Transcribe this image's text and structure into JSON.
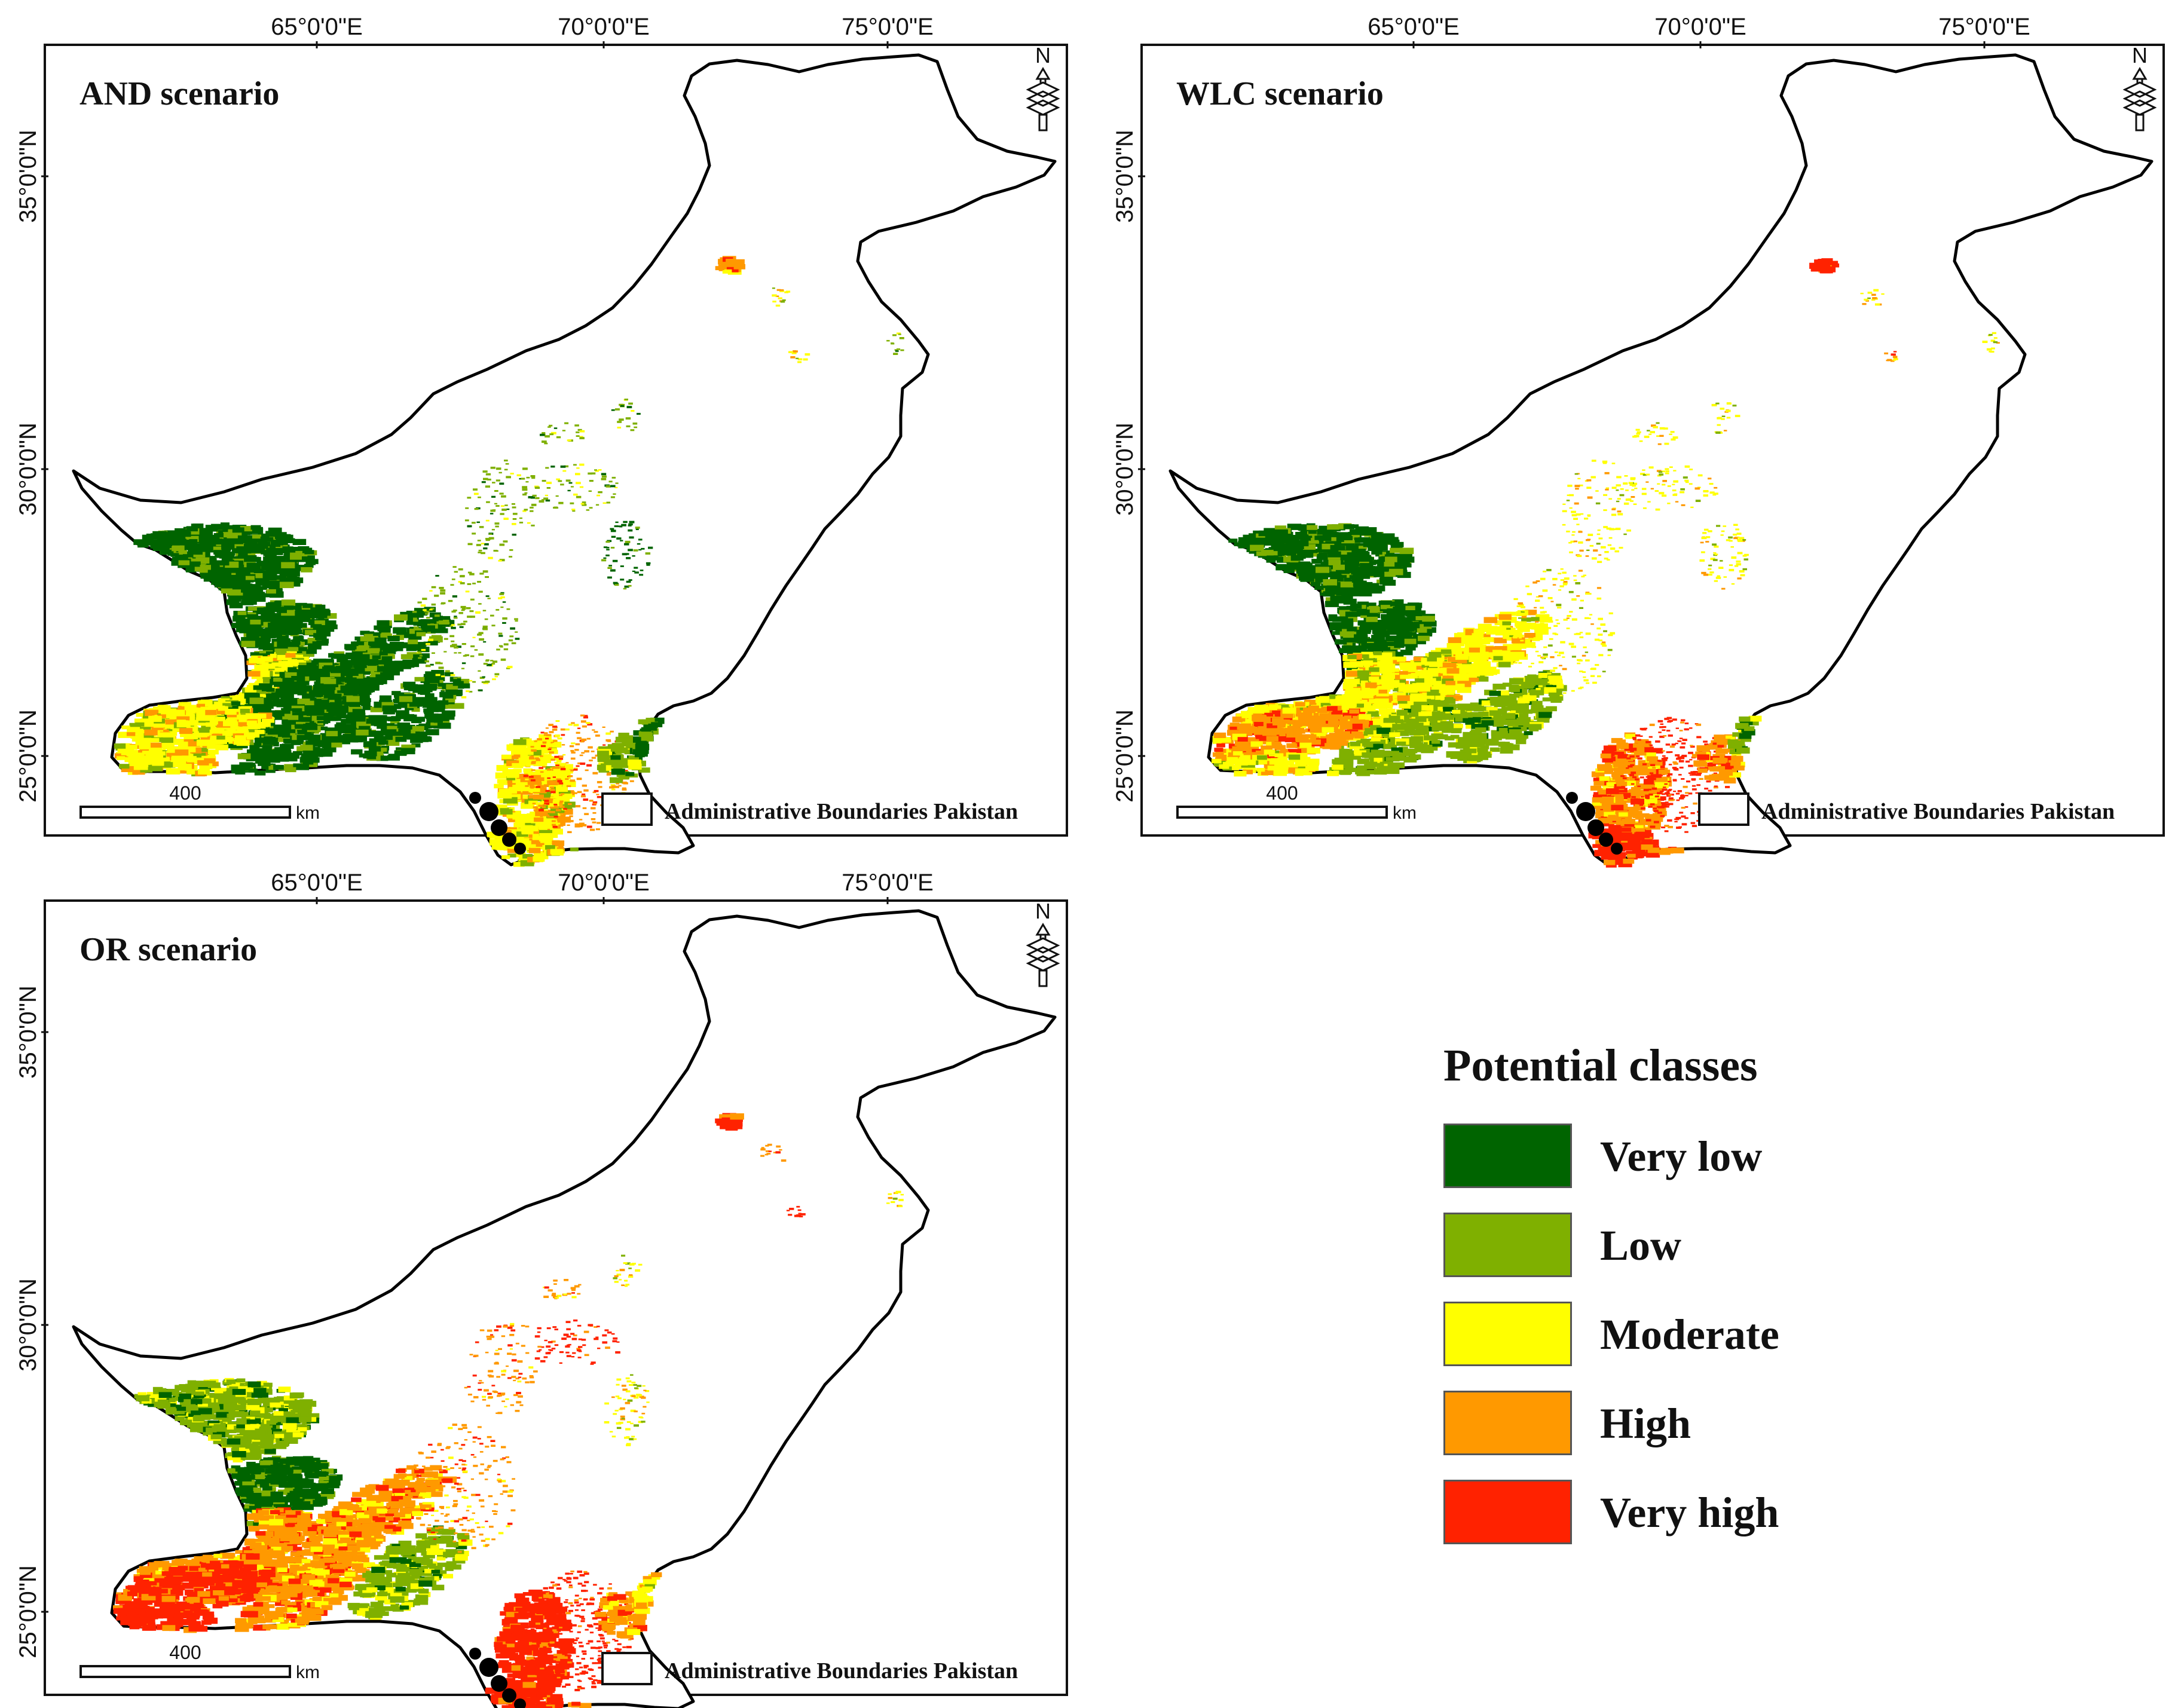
{
  "figure": {
    "panels": [
      {
        "id": "and",
        "title": "AND scenario",
        "lon_labels": [
          "65°0'0\"E",
          "70°0'0\"E",
          "75°0'0\"E"
        ],
        "lat_labels": [
          "35°0'0\"N",
          "30°0'0\"N",
          "25°0'0\"N"
        ],
        "scale_value": "400",
        "scale_unit": "km",
        "boundary_label": "Administrative Boundaries  Pakistan",
        "north_label": "N",
        "dominant_classes": [
          "Very low",
          "Low",
          "Moderate",
          "High",
          "Very high"
        ]
      },
      {
        "id": "wlc",
        "title": "WLC scenario",
        "lon_labels": [
          "65°0'0\"E",
          "70°0'0\"E",
          "75°0'0\"E"
        ],
        "lat_labels": [
          "35°0'0\"N",
          "30°0'0\"N",
          "25°0'0\"N"
        ],
        "scale_value": "400",
        "scale_unit": "km",
        "boundary_label": "Administrative Boundaries  Pakistan",
        "north_label": "N",
        "dominant_classes": [
          "Very low",
          "Low",
          "Moderate",
          "High",
          "Very high"
        ]
      },
      {
        "id": "or",
        "title": "OR scenario",
        "lon_labels": [
          "65°0'0\"E",
          "70°0'0\"E",
          "75°0'0\"E"
        ],
        "lat_labels": [
          "35°0'0\"N",
          "30°0'0\"N",
          "25°0'0\"N"
        ],
        "scale_value": "400",
        "scale_unit": "km",
        "boundary_label": "Administrative Boundaries  Pakistan",
        "north_label": "N",
        "dominant_classes": [
          "Very low",
          "Low",
          "Moderate",
          "High",
          "Very high"
        ]
      }
    ],
    "legend": {
      "title": "Potential classes",
      "items": [
        {
          "label": "Very low",
          "color": "#006400"
        },
        {
          "label": "Low",
          "color": "#7fb000"
        },
        {
          "label": "Moderate",
          "color": "#ffff00"
        },
        {
          "label": "High",
          "color": "#ff9900"
        },
        {
          "label": "Very high",
          "color": "#ff2200"
        }
      ]
    }
  }
}
